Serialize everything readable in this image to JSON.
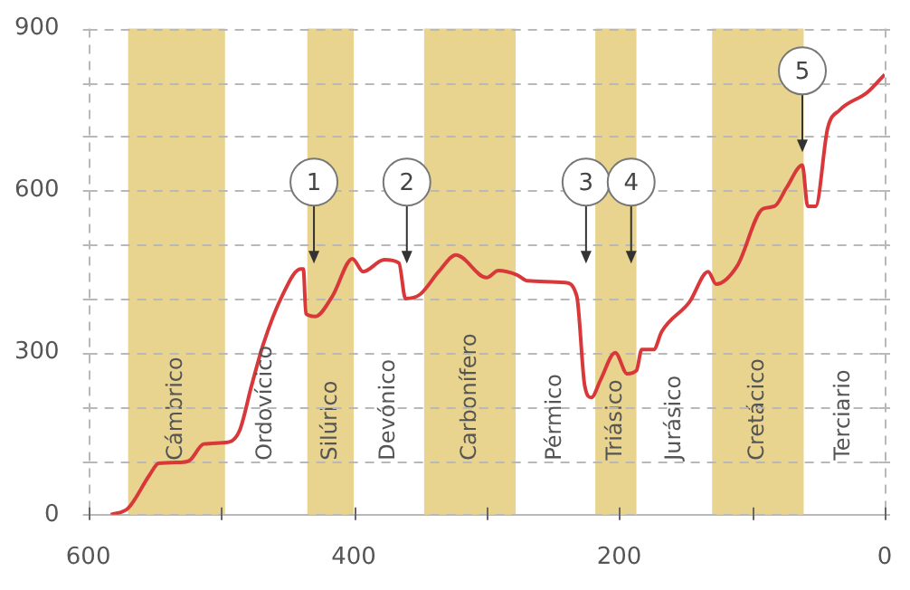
{
  "chart_data": {
    "type": "line",
    "xlim": [
      600,
      0
    ],
    "ylim": [
      0,
      900
    ],
    "xticks": [
      600,
      {
        "value": 500,
        "label": null
      },
      400,
      {
        "value": 300,
        "label": null
      },
      200,
      {
        "value": 100,
        "label": null
      },
      0
    ],
    "yticks": [
      0,
      {
        "value": 100,
        "label": null
      },
      {
        "value": 200,
        "label": null
      },
      300,
      {
        "value": 400,
        "label": null
      },
      {
        "value": 500,
        "label": null
      },
      600,
      {
        "value": 700,
        "label": null
      },
      {
        "value": 800,
        "label": null
      },
      900
    ],
    "grid": "y",
    "marker": "none",
    "line_style": "solid",
    "series": [
      {
        "color": "#d9383a",
        "x": [
          583,
          570,
          554,
          547,
          531,
          524,
          513,
          495,
          486,
          477,
          468,
          454,
          440,
          438,
          436,
          429,
          416,
          401,
          393,
          377,
          366,
          361,
          350,
          336,
          323,
          300,
          291,
          277,
          269,
          241,
          232,
          226,
          221,
          214,
          203,
          194,
          187,
          183,
          174,
          168,
          147,
          133,
          127,
          111,
          92,
          83,
          74,
          62,
          58,
          52,
          43,
          34,
          13,
          0
        ],
        "values": [
          0,
          12,
          73,
          95,
          97,
          100,
          131,
          134,
          156,
          239,
          317,
          405,
          455,
          455,
          372,
          367,
          405,
          474,
          450,
          472,
          466,
          400,
          408,
          450,
          481,
          439,
          452,
          444,
          433,
          430,
          405,
          239,
          217,
          250,
          300,
          261,
          267,
          306,
          306,
          339,
          394,
          450,
          427,
          461,
          566,
          571,
          605,
          647,
          571,
          571,
          715,
          749,
          782,
          815
        ]
      }
    ],
    "bands": [
      {
        "axis": "x",
        "from": 570,
        "to": 497,
        "label": "Cámbrico",
        "color": "#e8d48e"
      },
      {
        "axis": "x",
        "from": 435,
        "to": 400,
        "label": "Silúrico",
        "color": "#e8d48e"
      },
      {
        "axis": "x",
        "from": 347,
        "to": 278,
        "label": "Carbonífero",
        "color": "#e8d48e"
      },
      {
        "axis": "x",
        "from": 218,
        "to": 187,
        "label": "Triásico",
        "color": "#e8d48e"
      },
      {
        "axis": "x",
        "from": 130,
        "to": 61,
        "label": "Cretácico",
        "color": "#e8d48e"
      }
    ],
    "annotations": [
      "Ordovícico",
      "Devónico",
      "Pérmico",
      "Jurásico",
      "Terciario",
      {
        "text": "1",
        "x": 430,
        "y": 465
      },
      {
        "text": "2",
        "x": 360,
        "y": 465
      },
      {
        "text": "3",
        "x": 225,
        "y": 465
      },
      {
        "text": "4",
        "x": 191,
        "y": 465
      },
      {
        "text": "5",
        "x": 62,
        "y": 671
      }
    ]
  }
}
